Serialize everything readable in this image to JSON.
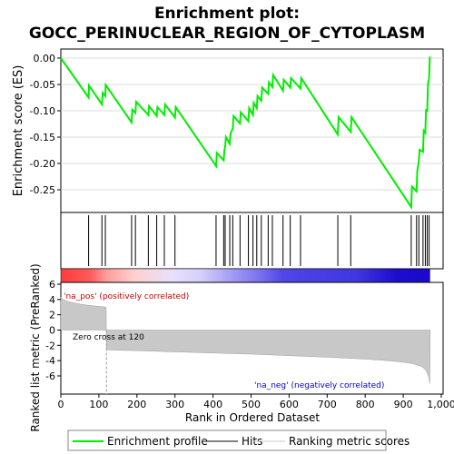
{
  "chart_data": {
    "type": "line",
    "title_line1": "Enrichment plot:",
    "title_line2": "GOCC_PERINUCLEAR_REGION_OF_CYTOPLASM",
    "es_panel": {
      "ylabel": "Enrichment score (ES)",
      "ylim": [
        -0.3,
        0.01
      ],
      "yticks": [
        0.0,
        -0.05,
        -0.1,
        -0.15,
        -0.2,
        -0.25
      ],
      "ytick_labels": [
        "0.00",
        "-0.05",
        "-0.10",
        "-0.15",
        "-0.20",
        "-0.25"
      ],
      "series": [
        {
          "name": "Enrichment profile",
          "color": "#00ee00",
          "x": [
            0,
            73,
            74,
            108,
            110,
            117,
            118,
            186,
            188,
            196,
            198,
            230,
            232,
            252,
            254,
            272,
            274,
            300,
            302,
            408,
            410,
            428,
            430,
            432,
            434,
            444,
            446,
            452,
            454,
            471,
            473,
            493,
            495,
            505,
            507,
            515,
            517,
            527,
            529,
            545,
            547,
            556,
            558,
            584,
            586,
            603,
            605,
            630,
            632,
            728,
            730,
            762,
            764,
            921,
            923,
            935,
            937,
            941,
            943,
            952,
            954,
            958,
            960,
            963,
            965,
            968,
            970
          ],
          "y": [
            0.0,
            -0.075,
            -0.052,
            -0.088,
            -0.066,
            -0.072,
            -0.051,
            -0.122,
            -0.098,
            -0.104,
            -0.083,
            -0.108,
            -0.091,
            -0.11,
            -0.093,
            -0.108,
            -0.088,
            -0.113,
            -0.093,
            -0.205,
            -0.18,
            -0.194,
            -0.175,
            -0.168,
            -0.15,
            -0.163,
            -0.143,
            -0.134,
            -0.11,
            -0.124,
            -0.103,
            -0.12,
            -0.095,
            -0.108,
            -0.085,
            -0.095,
            -0.072,
            -0.081,
            -0.056,
            -0.068,
            -0.046,
            -0.055,
            -0.032,
            -0.062,
            -0.041,
            -0.056,
            -0.038,
            -0.058,
            -0.038,
            -0.145,
            -0.112,
            -0.14,
            -0.112,
            -0.283,
            -0.244,
            -0.253,
            -0.214,
            -0.195,
            -0.174,
            -0.178,
            -0.138,
            -0.142,
            -0.097,
            -0.102,
            -0.05,
            -0.038,
            0.003
          ]
        }
      ]
    },
    "hits": [
      73,
      108,
      117,
      186,
      196,
      230,
      252,
      272,
      300,
      408,
      428,
      432,
      444,
      452,
      471,
      493,
      505,
      515,
      527,
      545,
      556,
      584,
      603,
      630,
      728,
      762,
      921,
      935,
      941,
      952,
      958,
      963,
      968
    ],
    "metric_panel": {
      "ylabel": "Ranked list metric (PreRanked)",
      "xlabel": "Rank in Ordered Dataset",
      "ylim": [
        -7,
        6
      ],
      "yticks": [
        6,
        4,
        2,
        0,
        -2,
        -4,
        -6
      ],
      "ytick_labels": [
        "6",
        "4",
        "2",
        "0",
        "-2",
        "-4",
        "-6"
      ],
      "xlim": [
        0,
        1000
      ],
      "xticks": [
        0,
        100,
        200,
        300,
        400,
        500,
        600,
        700,
        800,
        900,
        1000
      ],
      "xtick_labels": [
        "0",
        "100",
        "200",
        "300",
        "400",
        "500",
        "600",
        "700",
        "800",
        "900",
        "1,000"
      ],
      "metric_x": [
        0,
        2,
        6,
        15,
        30,
        50,
        70,
        90,
        110,
        119,
        120,
        125,
        200,
        300,
        400,
        500,
        600,
        700,
        800,
        860,
        900,
        925,
        945,
        955,
        962,
        967,
        970,
        971
      ],
      "metric_y": [
        4.3,
        4.2,
        4.0,
        3.8,
        3.6,
        3.4,
        3.25,
        3.15,
        3.05,
        3.0,
        -2.5,
        -2.6,
        -2.7,
        -2.85,
        -3.0,
        -3.15,
        -3.35,
        -3.55,
        -3.8,
        -4.0,
        -4.2,
        -4.4,
        -4.7,
        -5.0,
        -5.5,
        -6.2,
        -7.0,
        0
      ],
      "colorbar_gradient": [
        [
          0,
          "#ff3b3b"
        ],
        [
          8,
          "#ff5a5a"
        ],
        [
          12,
          "#ff9a9a"
        ],
        [
          20,
          "#ffd0d0"
        ],
        [
          30,
          "#e8e0ff"
        ],
        [
          38,
          "#d4d0f8"
        ],
        [
          44,
          "#b0aaf5"
        ],
        [
          54,
          "#7a70ee"
        ],
        [
          60,
          "#5048e6"
        ],
        [
          65,
          "#4a42e6"
        ],
        [
          80,
          "#4038e0"
        ],
        [
          91,
          "#1c0ccc"
        ],
        [
          100,
          "#1a0acc"
        ]
      ],
      "annotation_pos": "'na_pos' (positively correlated)",
      "annotation_neg": "'na_neg' (negatively correlated)",
      "zero_cross_label": "Zero cross at 120",
      "zero_cross": 120
    },
    "legend": {
      "items": [
        {
          "label": "Enrichment profile",
          "color": "#00ee00"
        },
        {
          "label": "Hits",
          "color": "#000000"
        },
        {
          "label": "Ranking metric scores",
          "color": "#cccccc"
        }
      ]
    }
  }
}
